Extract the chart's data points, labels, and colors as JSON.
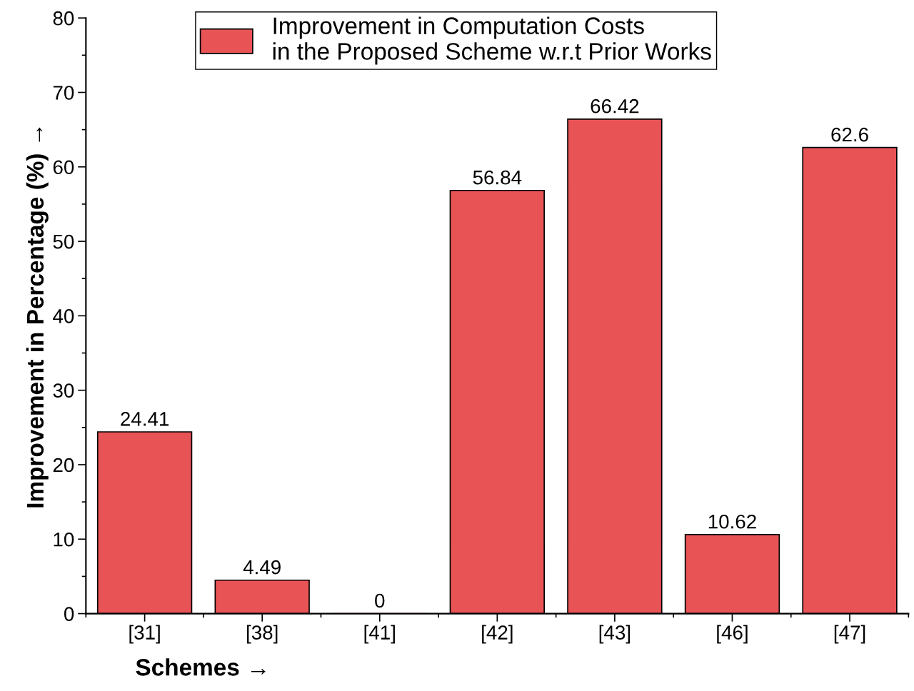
{
  "chart_data": {
    "type": "bar",
    "xlabel": "Schemes →",
    "ylabel": "Improvement in Percentage (%) →",
    "categories": [
      "[31]",
      "[38]",
      "[41]",
      "[42]",
      "[43]",
      "[46]",
      "[47]"
    ],
    "series": [
      {
        "name": "Improvement in Computation Costs\nin the Proposed Scheme w.r.t Prior Works",
        "color": "#e85456",
        "values": [
          24.41,
          4.49,
          0,
          56.84,
          66.42,
          10.62,
          62.6
        ]
      }
    ],
    "ylim": [
      0,
      80
    ],
    "yticks": [
      0,
      10,
      20,
      30,
      40,
      50,
      60,
      70,
      80
    ],
    "data_labels": true,
    "legend": "top",
    "grid": false
  }
}
